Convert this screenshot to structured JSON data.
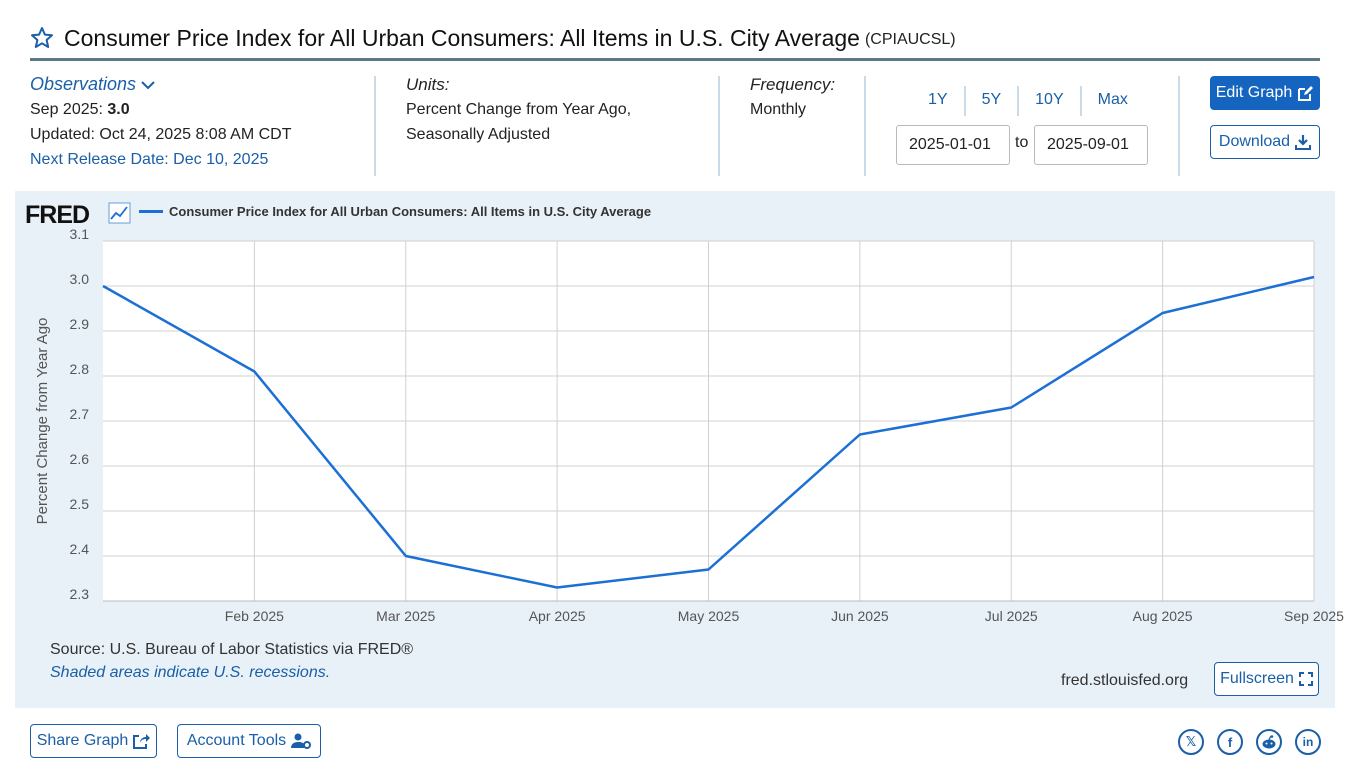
{
  "header": {
    "title": "Consumer Price Index for All Urban Consumers: All Items in U.S. City Average",
    "series_id": "(CPIAUCSL)"
  },
  "observations": {
    "label": "Observations",
    "latest_prefix": "Sep 2025:",
    "latest_value": "3.0",
    "updated": "Updated: Oct 24, 2025 8:08 AM CDT",
    "next_release": "Next Release Date: Dec 10, 2025"
  },
  "units": {
    "label": "Units:",
    "line1": "Percent Change from Year Ago,",
    "line2": "Seasonally Adjusted"
  },
  "frequency": {
    "label": "Frequency:",
    "value": "Monthly"
  },
  "range": {
    "buttons": [
      "1Y",
      "5Y",
      "10Y",
      "Max"
    ],
    "start": "2025-01-01",
    "to_label": "to",
    "end": "2025-09-01"
  },
  "actions": {
    "edit_graph": "Edit Graph",
    "download": "Download",
    "fullscreen": "Fullscreen",
    "share_graph": "Share Graph",
    "account_tools": "Account Tools"
  },
  "graph": {
    "logo": "FRED",
    "legend": "Consumer Price Index for All Urban Consumers: All Items in U.S. City Average",
    "source": "Source: U.S. Bureau of Labor Statistics via FRED®",
    "shaded_note": "Shaded areas indicate U.S. recessions.",
    "site": "fred.stlouisfed.org"
  },
  "colors": {
    "accent": "#1a5fa8",
    "primary_button": "#1565c0",
    "series_line": "#1c6fd4",
    "panel_bg": "#e8f1f8"
  },
  "social": [
    "x-icon",
    "facebook-icon",
    "reddit-icon",
    "linkedin-icon"
  ],
  "chart_data": {
    "type": "line",
    "x": [
      "2025-01",
      "2025-02",
      "2025-03",
      "2025-04",
      "2025-05",
      "2025-06",
      "2025-07",
      "2025-08",
      "2025-09"
    ],
    "x_tick_labels": [
      "Feb 2025",
      "Mar 2025",
      "Apr 2025",
      "May 2025",
      "Jun 2025",
      "Jul 2025",
      "Aug 2025",
      "Sep 2025"
    ],
    "series": [
      {
        "name": "Consumer Price Index for All Urban Consumers: All Items in U.S. City Average",
        "values": [
          3.0,
          2.81,
          2.4,
          2.33,
          2.37,
          2.67,
          2.73,
          2.94,
          3.02
        ]
      }
    ],
    "ylabel": "Percent Change from Year Ago",
    "ylim": [
      2.3,
      3.1
    ],
    "y_ticks": [
      "2.3",
      "2.4",
      "2.5",
      "2.6",
      "2.7",
      "2.8",
      "2.9",
      "3.0",
      "3.1"
    ],
    "grid": true
  }
}
